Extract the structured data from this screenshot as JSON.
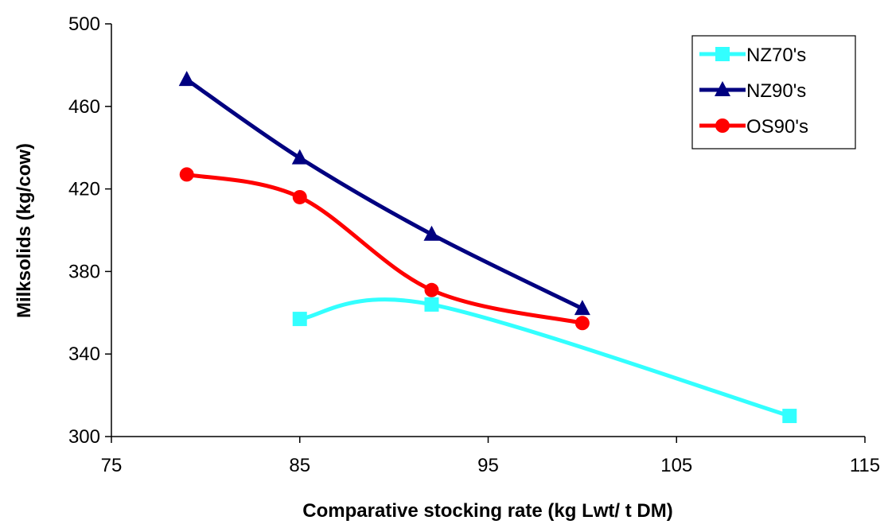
{
  "chart_data": {
    "type": "line",
    "title": "",
    "xlabel": "Comparative stocking rate (kg Lwt/ t DM)",
    "ylabel": "Milksolids (kg/cow)",
    "xlim": [
      75,
      115
    ],
    "ylim": [
      300,
      500
    ],
    "xticks": [
      75,
      85,
      95,
      105,
      115
    ],
    "yticks": [
      300,
      340,
      380,
      420,
      460,
      500
    ],
    "grid": false,
    "legend_position": "top-right",
    "smooth": true,
    "series": [
      {
        "name": "NZ70's",
        "color": "#33ffff",
        "marker": "square",
        "x": [
          85,
          92,
          111
        ],
        "y": [
          357,
          364,
          310
        ]
      },
      {
        "name": "NZ90's",
        "color": "#000080",
        "marker": "triangle",
        "x": [
          79,
          85,
          92,
          100
        ],
        "y": [
          473,
          435,
          398,
          362
        ]
      },
      {
        "name": "OS90's",
        "color": "#ff0000",
        "marker": "circle",
        "x": [
          79,
          85,
          92,
          100
        ],
        "y": [
          427,
          416,
          371,
          355
        ]
      }
    ]
  }
}
